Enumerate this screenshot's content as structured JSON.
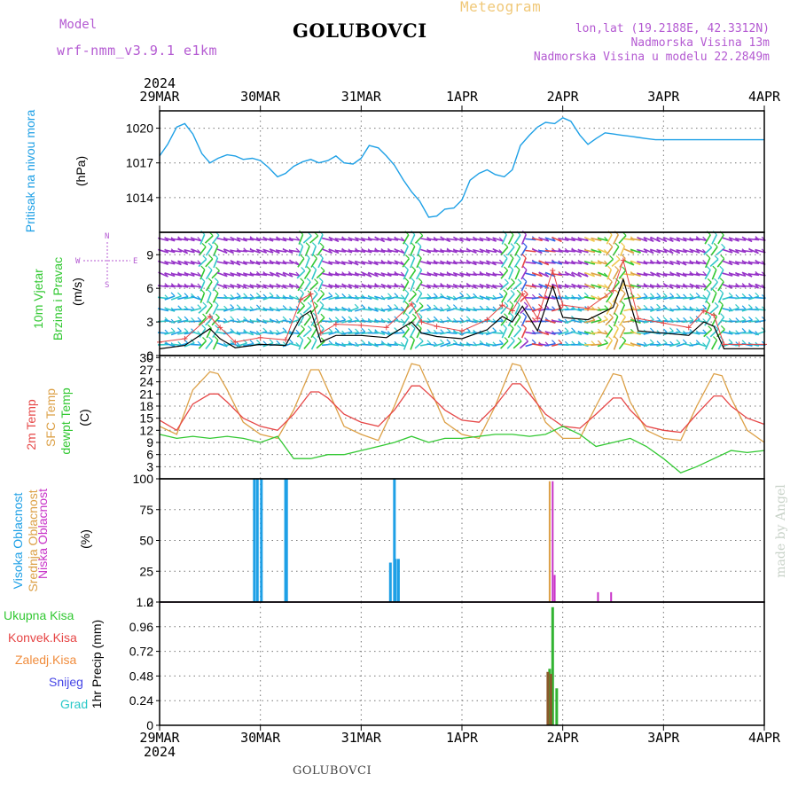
{
  "header": {
    "model_label": "Model",
    "model_name": "wrf-nmm_v3.9.1  e1km",
    "station": "GOLUBOVCI",
    "product": "Meteogram",
    "lonlat": "lon,lat (19.2188E, 42.3312N)",
    "altitude": "Nadmorska Visina 13m",
    "model_altitude": "Nadmorska Visina u modelu 22.2849m"
  },
  "footer": {
    "station": "GOLUBOVCI"
  },
  "watermark": "made by Angel",
  "colors": {
    "pressure": "#1ea0e6",
    "temp2m": "#e64646",
    "sfc": "#dca046",
    "dewpt": "#32c832",
    "high_cloud": "#1ea0e6",
    "mid_cloud": "#dca046",
    "low_cloud": "#c832c8",
    "precip_total": "#32b432",
    "precip_conv": "#e64646",
    "precip_frozen": "#f08c3c",
    "snow": "#4646e6",
    "hail": "#28c8c8",
    "wind_max": "#e64646",
    "wind_mean": "#000000"
  },
  "time_axis": {
    "year": "2024",
    "ticks": [
      "29MAR",
      "30MAR",
      "31MAR",
      "1APR",
      "2APR",
      "3APR",
      "4APR"
    ]
  },
  "chart_data": [
    {
      "type": "line",
      "panel": "pressure",
      "labels": {
        "title": "Pritisak na nivou mora",
        "unit": "(hPa)"
      },
      "ylim": [
        1011,
        1021.5
      ],
      "yticks": [
        "1014",
        "1017",
        "1020"
      ],
      "grid": true,
      "x_unit": "days from 29MAR 00:00",
      "series": [
        {
          "name": "Pritisak na nivou mora",
          "x": [
            0,
            0.08,
            0.17,
            0.25,
            0.33,
            0.42,
            0.5,
            0.58,
            0.67,
            0.75,
            0.83,
            0.92,
            1,
            1.08,
            1.17,
            1.25,
            1.33,
            1.42,
            1.5,
            1.58,
            1.67,
            1.75,
            1.83,
            1.92,
            2,
            2.08,
            2.17,
            2.25,
            2.33,
            2.42,
            2.5,
            2.58,
            2.67,
            2.75,
            2.83,
            2.92,
            3,
            3.08,
            3.17,
            3.25,
            3.33,
            3.42,
            3.5,
            3.58,
            3.67,
            3.75,
            3.83,
            3.92,
            4,
            4.08,
            4.17,
            4.25,
            4.33,
            4.42,
            4.5,
            4.58,
            4.67,
            4.75,
            4.83,
            4.92,
            5,
            5.08,
            5.17,
            5.25,
            5.33,
            5.42,
            5.5,
            5.58,
            5.67,
            5.75,
            5.83,
            5.92,
            6
          ],
          "values": [
            1017.6,
            1018.6,
            1020.1,
            1020.4,
            1019.5,
            1017.8,
            1017,
            1017.4,
            1017.7,
            1017.6,
            1017.3,
            1017.4,
            1017.2,
            1016.6,
            1015.8,
            1016.1,
            1016.7,
            1017.1,
            1017.3,
            1017,
            1017.2,
            1017.6,
            1017,
            1016.9,
            1017.4,
            1018.5,
            1018.3,
            1017.6,
            1016.8,
            1015.5,
            1014.5,
            1013.7,
            1012.3,
            1012.4,
            1013,
            1013.1,
            1013.8,
            1015.5,
            1016.1,
            1016.4,
            1016,
            1015.8,
            1016.4,
            1018.5,
            1019.4,
            1020.1,
            1020.5,
            1020.4,
            1020.9,
            1020.6,
            1019.4,
            1018.6,
            1019.1,
            1019.6,
            1019.5,
            1019.4,
            1019.3,
            1019.2,
            1019.1,
            1019,
            1019,
            1019,
            1019,
            1019,
            1019,
            1019,
            1019,
            1019,
            1019,
            1019,
            1019,
            1019,
            1019
          ]
        }
      ]
    },
    {
      "type": "line",
      "panel": "wind",
      "labels": {
        "title_line1": "10m Vjetar",
        "title_line2": "Brzina i Pravac",
        "unit": "(m/s)"
      },
      "ylim": [
        0,
        11
      ],
      "yticks": [
        "0",
        "3",
        "6",
        "9"
      ],
      "compass": {
        "north": "N",
        "east": "E",
        "west": "W",
        "south": "S"
      },
      "grid": true,
      "x_unit": "days from 29MAR 00:00",
      "series": [
        {
          "name": "max",
          "x": [
            0,
            0.25,
            0.5,
            0.6,
            0.75,
            1,
            1.25,
            1.4,
            1.5,
            1.6,
            1.75,
            2,
            2.25,
            2.5,
            2.6,
            2.75,
            3,
            3.25,
            3.4,
            3.5,
            3.6,
            3.75,
            3.9,
            4,
            4.25,
            4.5,
            4.6,
            4.75,
            5,
            5.25,
            5.4,
            5.5,
            5.6,
            5.75,
            6
          ],
          "values": [
            1.2,
            1.5,
            3.5,
            2.5,
            1.2,
            1.6,
            1.4,
            5,
            5.5,
            2,
            2.8,
            2.7,
            2.5,
            4.6,
            3,
            2.6,
            2.2,
            3.2,
            4.5,
            4,
            5.5,
            3.3,
            7.6,
            4.5,
            4.2,
            5.8,
            8.5,
            3.3,
            2.9,
            2.5,
            4,
            3.6,
            1,
            1,
            1
          ]
        },
        {
          "name": "mean",
          "x": [
            0,
            0.25,
            0.5,
            0.6,
            0.75,
            1,
            1.25,
            1.4,
            1.5,
            1.6,
            1.75,
            2,
            2.25,
            2.5,
            2.6,
            2.75,
            3,
            3.25,
            3.4,
            3.5,
            3.6,
            3.75,
            3.9,
            4,
            4.25,
            4.5,
            4.6,
            4.75,
            5,
            5.25,
            5.4,
            5.5,
            5.6,
            5.75,
            6
          ],
          "values": [
            0.6,
            0.9,
            2.4,
            1.5,
            0.7,
            1,
            0.9,
            3.4,
            4,
            1.2,
            1.8,
            1.8,
            1.6,
            3,
            2,
            1.7,
            1.5,
            2.3,
            3.5,
            3,
            4.4,
            2.2,
            6.2,
            3.4,
            3.2,
            4.3,
            6.8,
            2.2,
            2,
            1.8,
            3,
            2.6,
            0.6,
            0.6,
            0.6
          ]
        }
      ]
    },
    {
      "type": "line",
      "panel": "temperature",
      "labels": {
        "t2m": "2m Temp",
        "sfc": "SFC Temp",
        "dew": "dewpt Temp",
        "unit": "(C)"
      },
      "ylim": [
        0,
        30.5
      ],
      "yticks": [
        "3",
        "6",
        "9",
        "12",
        "15",
        "18",
        "21",
        "24",
        "27",
        "30"
      ],
      "grid": true,
      "x_unit": "days from 29MAR 00:00",
      "series": [
        {
          "name": "2m Temp",
          "x": [
            0,
            0.17,
            0.33,
            0.5,
            0.58,
            0.67,
            0.83,
            1,
            1.17,
            1.33,
            1.5,
            1.58,
            1.67,
            1.83,
            2,
            2.17,
            2.33,
            2.5,
            2.58,
            2.67,
            2.83,
            3,
            3.17,
            3.33,
            3.5,
            3.58,
            3.67,
            3.83,
            4,
            4.17,
            4.33,
            4.5,
            4.58,
            4.67,
            4.83,
            5,
            5.17,
            5.33,
            5.5,
            5.58,
            5.67,
            5.83,
            6
          ],
          "values": [
            14.5,
            12,
            18.5,
            21,
            21,
            19,
            15,
            13,
            12,
            16,
            21.5,
            21.5,
            20,
            16,
            14,
            13,
            17,
            23,
            23,
            21,
            17,
            14.5,
            14,
            18,
            23.5,
            23.5,
            21,
            16,
            13,
            12.5,
            16,
            20,
            20,
            17,
            13,
            12,
            11.5,
            16,
            20.5,
            20.5,
            18,
            15,
            13.5
          ]
        },
        {
          "name": "SFC Temp",
          "x": [
            0,
            0.17,
            0.33,
            0.5,
            0.58,
            0.67,
            0.83,
            1,
            1.17,
            1.33,
            1.5,
            1.58,
            1.67,
            1.83,
            2,
            2.17,
            2.33,
            2.5,
            2.58,
            2.67,
            2.83,
            3,
            3.17,
            3.33,
            3.5,
            3.58,
            3.67,
            3.83,
            4,
            4.17,
            4.33,
            4.5,
            4.58,
            4.67,
            4.83,
            5,
            5.17,
            5.33,
            5.5,
            5.58,
            5.67,
            5.83,
            6
          ],
          "values": [
            13,
            11,
            22,
            26.5,
            26,
            22,
            14,
            11,
            10,
            17,
            27,
            27,
            22,
            13,
            11,
            9.5,
            18,
            28.5,
            28,
            23,
            14,
            11,
            10,
            18,
            28.5,
            28,
            23,
            14,
            10,
            10,
            18,
            26,
            25.5,
            19,
            12,
            10,
            9.5,
            18,
            26,
            25.5,
            20,
            12,
            9
          ]
        },
        {
          "name": "dewpt Temp",
          "x": [
            0,
            0.17,
            0.33,
            0.5,
            0.67,
            0.83,
            1,
            1.17,
            1.33,
            1.5,
            1.67,
            1.83,
            2,
            2.17,
            2.33,
            2.5,
            2.67,
            2.83,
            3,
            3.17,
            3.33,
            3.5,
            3.67,
            3.83,
            4,
            4.17,
            4.33,
            4.5,
            4.67,
            4.83,
            5,
            5.17,
            5.33,
            5.5,
            5.67,
            5.83,
            6
          ],
          "values": [
            11,
            10,
            10.5,
            10,
            10.5,
            10,
            9,
            10.5,
            5,
            5,
            6,
            6,
            7,
            8,
            9,
            10.5,
            9,
            10,
            10,
            10.5,
            11,
            11,
            10.5,
            11,
            13,
            11,
            8,
            9,
            10,
            8,
            5,
            1.5,
            3,
            5,
            7,
            6.5,
            7
          ]
        }
      ]
    },
    {
      "type": "bar",
      "panel": "cloud",
      "labels": {
        "high": "Visoka Oblacnost",
        "mid": "Srednja Oblacnost",
        "low": "Niska Oblacnost",
        "unit": "(%)"
      },
      "ylim": [
        0,
        100
      ],
      "yticks": [
        "0",
        "25",
        "50",
        "75",
        "100"
      ],
      "grid": true,
      "x_unit": "days from 29MAR 00:00",
      "series": [
        {
          "name": "Visoka Oblacnost",
          "x": [
            0.94,
            0.97,
            1.01,
            1.25,
            1.26,
            2.29,
            2.33,
            2.34,
            2.37
          ],
          "values": [
            100,
            100,
            100,
            100,
            100,
            32,
            100,
            35,
            35
          ]
        },
        {
          "name": "Srednja Oblacnost",
          "x": [
            3.87
          ],
          "values": [
            98
          ]
        },
        {
          "name": "Niska Oblacnost",
          "x": [
            3.9,
            3.92,
            4.35,
            4.48
          ],
          "values": [
            98,
            22,
            8,
            8
          ]
        }
      ]
    },
    {
      "type": "bar",
      "panel": "precip",
      "labels": {
        "total": "Ukupna Kisa",
        "conv": "Konvek.Kisa",
        "frozen": "Zaledj.Kisa",
        "snow": "Snijeg",
        "hail": "Grad",
        "unit": "1hr Precip (mm)"
      },
      "ylim": [
        0,
        1.2
      ],
      "yticks": [
        "0",
        "0.24",
        "0.48",
        "0.72",
        "0.96",
        "1.2"
      ],
      "grid": true,
      "x_unit": "days from 29MAR 00:00",
      "series": [
        {
          "name": "Ukupna Kisa",
          "x": [
            3.87,
            3.9,
            3.94
          ],
          "values": [
            0.55,
            1.15,
            0.36
          ]
        },
        {
          "name": "Konvek.Kisa",
          "x": [
            3.87,
            3.9
          ],
          "values": [
            0.52,
            0.5
          ]
        }
      ]
    }
  ]
}
